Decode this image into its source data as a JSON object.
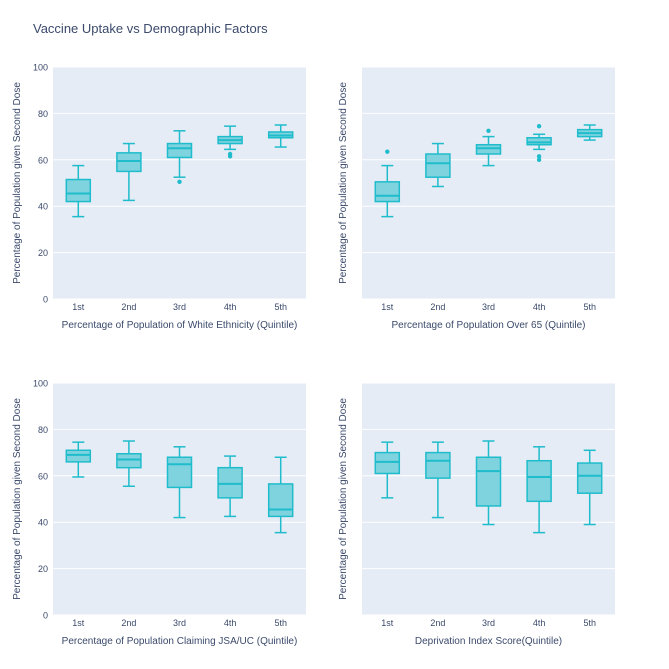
{
  "title": "Vaccine Uptake vs Demographic Factors",
  "colors": {
    "box_fill": "#7fd3df",
    "box_line": "#1fbccb",
    "panel_bg": "#e5ecf6",
    "grid": "#ffffff",
    "text": "#3b4a6b"
  },
  "chart_data": [
    {
      "type": "box",
      "xlabel": "Percentage of Population of White Ethnicity (Quintile)",
      "ylabel": "Percentage of Population given Second Dose",
      "ylim": [
        0,
        100
      ],
      "yticks": [
        0,
        20,
        40,
        60,
        80,
        100
      ],
      "categories": [
        "1st",
        "2nd",
        "3rd",
        "4th",
        "5th"
      ],
      "boxes": [
        {
          "min": 35.5,
          "q1": 42,
          "median": 45.5,
          "q3": 51.5,
          "max": 57.5,
          "outliers": []
        },
        {
          "min": 42.5,
          "q1": 55,
          "median": 59.5,
          "q3": 63,
          "max": 67,
          "outliers": []
        },
        {
          "min": 52.5,
          "q1": 61,
          "median": 65,
          "q3": 67,
          "max": 72.5,
          "outliers": [
            50.5
          ]
        },
        {
          "min": 64.5,
          "q1": 67,
          "median": 68.5,
          "q3": 70,
          "max": 74.5,
          "outliers": [
            62.5,
            61.5
          ]
        },
        {
          "min": 65.5,
          "q1": 69.5,
          "median": 70.5,
          "q3": 72,
          "max": 75,
          "outliers": []
        }
      ]
    },
    {
      "type": "box",
      "xlabel": "Percentage of Population Over 65 (Quintile)",
      "ylabel": "Percentage of Population given Second Dose",
      "ylim": [
        0,
        100
      ],
      "yticks": [
        0,
        20,
        40,
        60,
        80,
        100
      ],
      "categories": [
        "1st",
        "2nd",
        "3rd",
        "4th",
        "5th"
      ],
      "boxes": [
        {
          "min": 35.5,
          "q1": 42,
          "median": 44.5,
          "q3": 50.5,
          "max": 57.5,
          "outliers": [
            63.5
          ]
        },
        {
          "min": 48.5,
          "q1": 52.5,
          "median": 58.5,
          "q3": 62.5,
          "max": 67,
          "outliers": []
        },
        {
          "min": 57.5,
          "q1": 62.5,
          "median": 65,
          "q3": 66.5,
          "max": 70,
          "outliers": [
            72.5
          ]
        },
        {
          "min": 64.5,
          "q1": 66.5,
          "median": 67.5,
          "q3": 69.5,
          "max": 71,
          "outliers": [
            74.5,
            61.5,
            60
          ]
        },
        {
          "min": 68.5,
          "q1": 70,
          "median": 71.5,
          "q3": 73,
          "max": 75,
          "outliers": []
        }
      ]
    },
    {
      "type": "box",
      "xlabel": "Percentage of Population Claiming JSA/UC (Quintile)",
      "ylabel": "Percentage of Population given Second Dose",
      "ylim": [
        0,
        100
      ],
      "yticks": [
        0,
        20,
        40,
        60,
        80,
        100
      ],
      "categories": [
        "1st",
        "2nd",
        "3rd",
        "4th",
        "5th"
      ],
      "boxes": [
        {
          "min": 59.5,
          "q1": 66,
          "median": 69,
          "q3": 71,
          "max": 74.5,
          "outliers": []
        },
        {
          "min": 55.5,
          "q1": 63.5,
          "median": 67,
          "q3": 69.5,
          "max": 75,
          "outliers": []
        },
        {
          "min": 42,
          "q1": 55,
          "median": 65,
          "q3": 68,
          "max": 72.5,
          "outliers": []
        },
        {
          "min": 42.5,
          "q1": 50.5,
          "median": 56.5,
          "q3": 63.5,
          "max": 68.5,
          "outliers": []
        },
        {
          "min": 35.5,
          "q1": 42.5,
          "median": 45.5,
          "q3": 56.5,
          "max": 68,
          "outliers": []
        }
      ]
    },
    {
      "type": "box",
      "xlabel": "Deprivation Index Score(Quintile)",
      "ylabel": "Percentage of Population given Second Dose",
      "ylim": [
        0,
        100
      ],
      "yticks": [
        0,
        20,
        40,
        60,
        80,
        100
      ],
      "categories": [
        "1st",
        "2nd",
        "3rd",
        "4th",
        "5th"
      ],
      "boxes": [
        {
          "min": 50.5,
          "q1": 61,
          "median": 66,
          "q3": 70,
          "max": 74.5,
          "outliers": []
        },
        {
          "min": 42,
          "q1": 59,
          "median": 66.5,
          "q3": 70,
          "max": 74.5,
          "outliers": []
        },
        {
          "min": 39,
          "q1": 47,
          "median": 62,
          "q3": 68,
          "max": 75,
          "outliers": []
        },
        {
          "min": 35.5,
          "q1": 49,
          "median": 59.5,
          "q3": 66.5,
          "max": 72.5,
          "outliers": []
        },
        {
          "min": 39,
          "q1": 52.5,
          "median": 60,
          "q3": 65.5,
          "max": 71,
          "outliers": []
        }
      ]
    }
  ]
}
